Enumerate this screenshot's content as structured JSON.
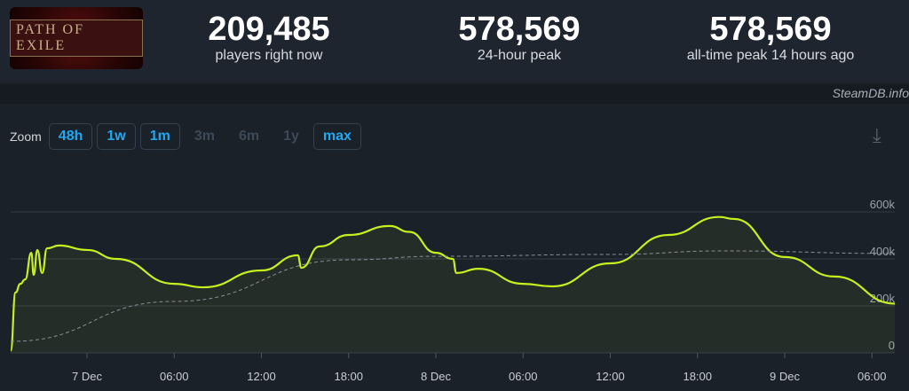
{
  "header": {
    "logo_text": "PATH OF EXILE",
    "stats": [
      {
        "value": "209,485",
        "label": "players right now"
      },
      {
        "value": "578,569",
        "label": "24-hour peak"
      },
      {
        "value": "578,569",
        "label": "all-time peak 14 hours ago"
      }
    ]
  },
  "credit": "SteamDB.info",
  "zoom": {
    "label": "Zoom",
    "buttons": [
      {
        "label": "48h",
        "enabled": true
      },
      {
        "label": "1w",
        "enabled": true
      },
      {
        "label": "1m",
        "enabled": true
      },
      {
        "label": "3m",
        "enabled": false
      },
      {
        "label": "6m",
        "enabled": false
      },
      {
        "label": "1y",
        "enabled": false
      },
      {
        "label": "max",
        "enabled": true
      }
    ],
    "download_icon": "download-icon"
  },
  "chart_data": {
    "type": "line",
    "ylim": [
      0,
      600000
    ],
    "grid": true,
    "yticks": [
      {
        "v": 0,
        "label": "0"
      },
      {
        "v": 200000,
        "label": "200k"
      },
      {
        "v": 400000,
        "label": "400k"
      },
      {
        "v": 600000,
        "label": "600k"
      }
    ],
    "xticks": [
      {
        "t": "7 00:00",
        "label": "7 Dec"
      },
      {
        "t": "7 06:00",
        "label": "06:00"
      },
      {
        "t": "7 12:00",
        "label": "12:00"
      },
      {
        "t": "7 18:00",
        "label": "18:00"
      },
      {
        "t": "8 00:00",
        "label": "8 Dec"
      },
      {
        "t": "8 06:00",
        "label": "06:00"
      },
      {
        "t": "8 12:00",
        "label": "12:00"
      },
      {
        "t": "8 18:00",
        "label": "18:00"
      },
      {
        "t": "9 00:00",
        "label": "9 Dec"
      },
      {
        "t": "9 06:00",
        "label": "06:00"
      }
    ],
    "colors": {
      "players": "#c6f01e",
      "average": "#8a9099"
    },
    "series": [
      {
        "key": "players",
        "points": [
          [
            "6 18:45",
            10000
          ],
          [
            "6 19:05",
            257000
          ],
          [
            "6 19:25",
            294000
          ],
          [
            "6 19:45",
            313000
          ],
          [
            "6 20:10",
            426000
          ],
          [
            "6 20:20",
            332000
          ],
          [
            "6 20:35",
            438000
          ],
          [
            "6 20:55",
            340000
          ],
          [
            "6 21:15",
            445000
          ],
          [
            "6 22:05",
            457000
          ],
          [
            "7 00:00",
            438000
          ],
          [
            "7 02:00",
            400000
          ],
          [
            "7 06:00",
            294000
          ],
          [
            "7 08:00",
            279000
          ],
          [
            "7 12:00",
            351000
          ],
          [
            "7 14:30",
            415000
          ],
          [
            "7 14:45",
            362000
          ],
          [
            "7 16:00",
            453000
          ],
          [
            "7 18:00",
            502000
          ],
          [
            "7 20:50",
            540000
          ],
          [
            "7 22:10",
            515000
          ],
          [
            "8 00:00",
            426000
          ],
          [
            "8 01:10",
            400000
          ],
          [
            "8 01:25",
            340000
          ],
          [
            "8 02:55",
            358000
          ],
          [
            "8 06:00",
            294000
          ],
          [
            "8 08:00",
            283000
          ],
          [
            "8 12:00",
            381000
          ],
          [
            "8 16:00",
            502000
          ],
          [
            "8 19:30",
            578569
          ],
          [
            "8 20:30",
            570000
          ],
          [
            "9 00:00",
            408000
          ],
          [
            "9 03:25",
            325000
          ],
          [
            "9 07:35",
            209485
          ]
        ]
      },
      {
        "key": "average",
        "dashed": true,
        "points": [
          [
            "6 18:45",
            49000
          ],
          [
            "7 06:00",
            219000
          ],
          [
            "7 18:00",
            396000
          ],
          [
            "8 00:00",
            411000
          ],
          [
            "8 12:00",
            419000
          ],
          [
            "8 19:50",
            434000
          ],
          [
            "9 07:35",
            423000
          ]
        ]
      }
    ]
  }
}
